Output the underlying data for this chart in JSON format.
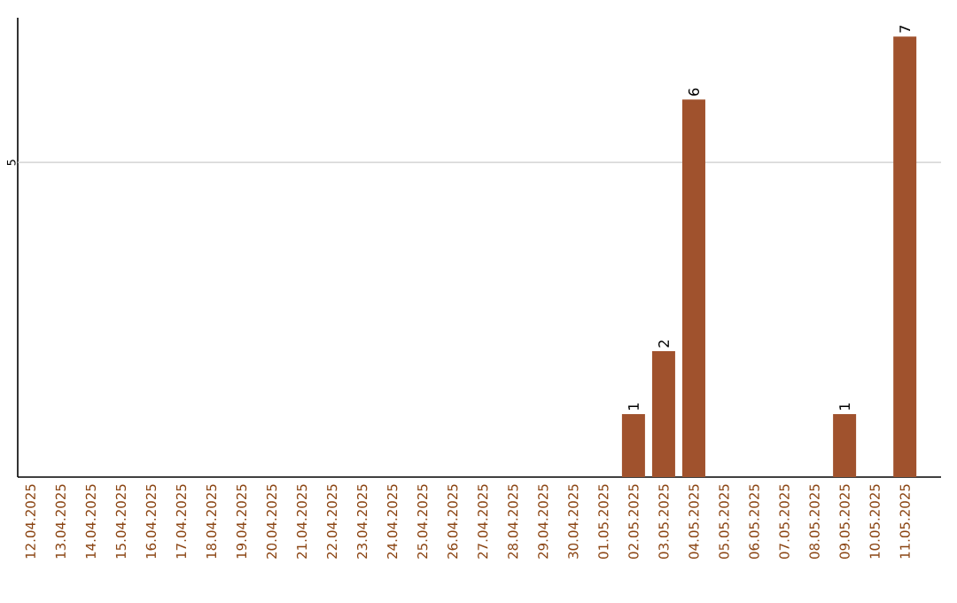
{
  "chart_data": {
    "type": "bar",
    "categories": [
      "12.04.2025",
      "13.04.2025",
      "14.04.2025",
      "15.04.2025",
      "16.04.2025",
      "17.04.2025",
      "18.04.2025",
      "19.04.2025",
      "20.04.2025",
      "21.04.2025",
      "22.04.2025",
      "23.04.2025",
      "24.04.2025",
      "25.04.2025",
      "26.04.2025",
      "27.04.2025",
      "28.04.2025",
      "29.04.2025",
      "30.04.2025",
      "01.05.2025",
      "02.05.2025",
      "03.05.2025",
      "04.05.2025",
      "05.05.2025",
      "06.05.2025",
      "07.05.2025",
      "08.05.2025",
      "09.05.2025",
      "10.05.2025",
      "11.05.2025"
    ],
    "values": [
      null,
      null,
      null,
      null,
      null,
      null,
      null,
      null,
      null,
      null,
      null,
      null,
      null,
      null,
      null,
      null,
      null,
      null,
      null,
      null,
      1,
      2,
      6,
      null,
      null,
      null,
      null,
      1,
      null,
      7
    ],
    "value_labels": [
      null,
      null,
      null,
      null,
      null,
      null,
      null,
      null,
      null,
      null,
      null,
      null,
      null,
      null,
      null,
      null,
      null,
      null,
      null,
      null,
      "1",
      "2",
      "6",
      null,
      null,
      null,
      null,
      "1",
      null,
      "7"
    ],
    "color": "#a0522d",
    "ylim": [
      0,
      7.3
    ],
    "ref_lines": [
      {
        "axis": "y",
        "value": 5,
        "label": "5",
        "color": "#cccccc"
      }
    ]
  }
}
